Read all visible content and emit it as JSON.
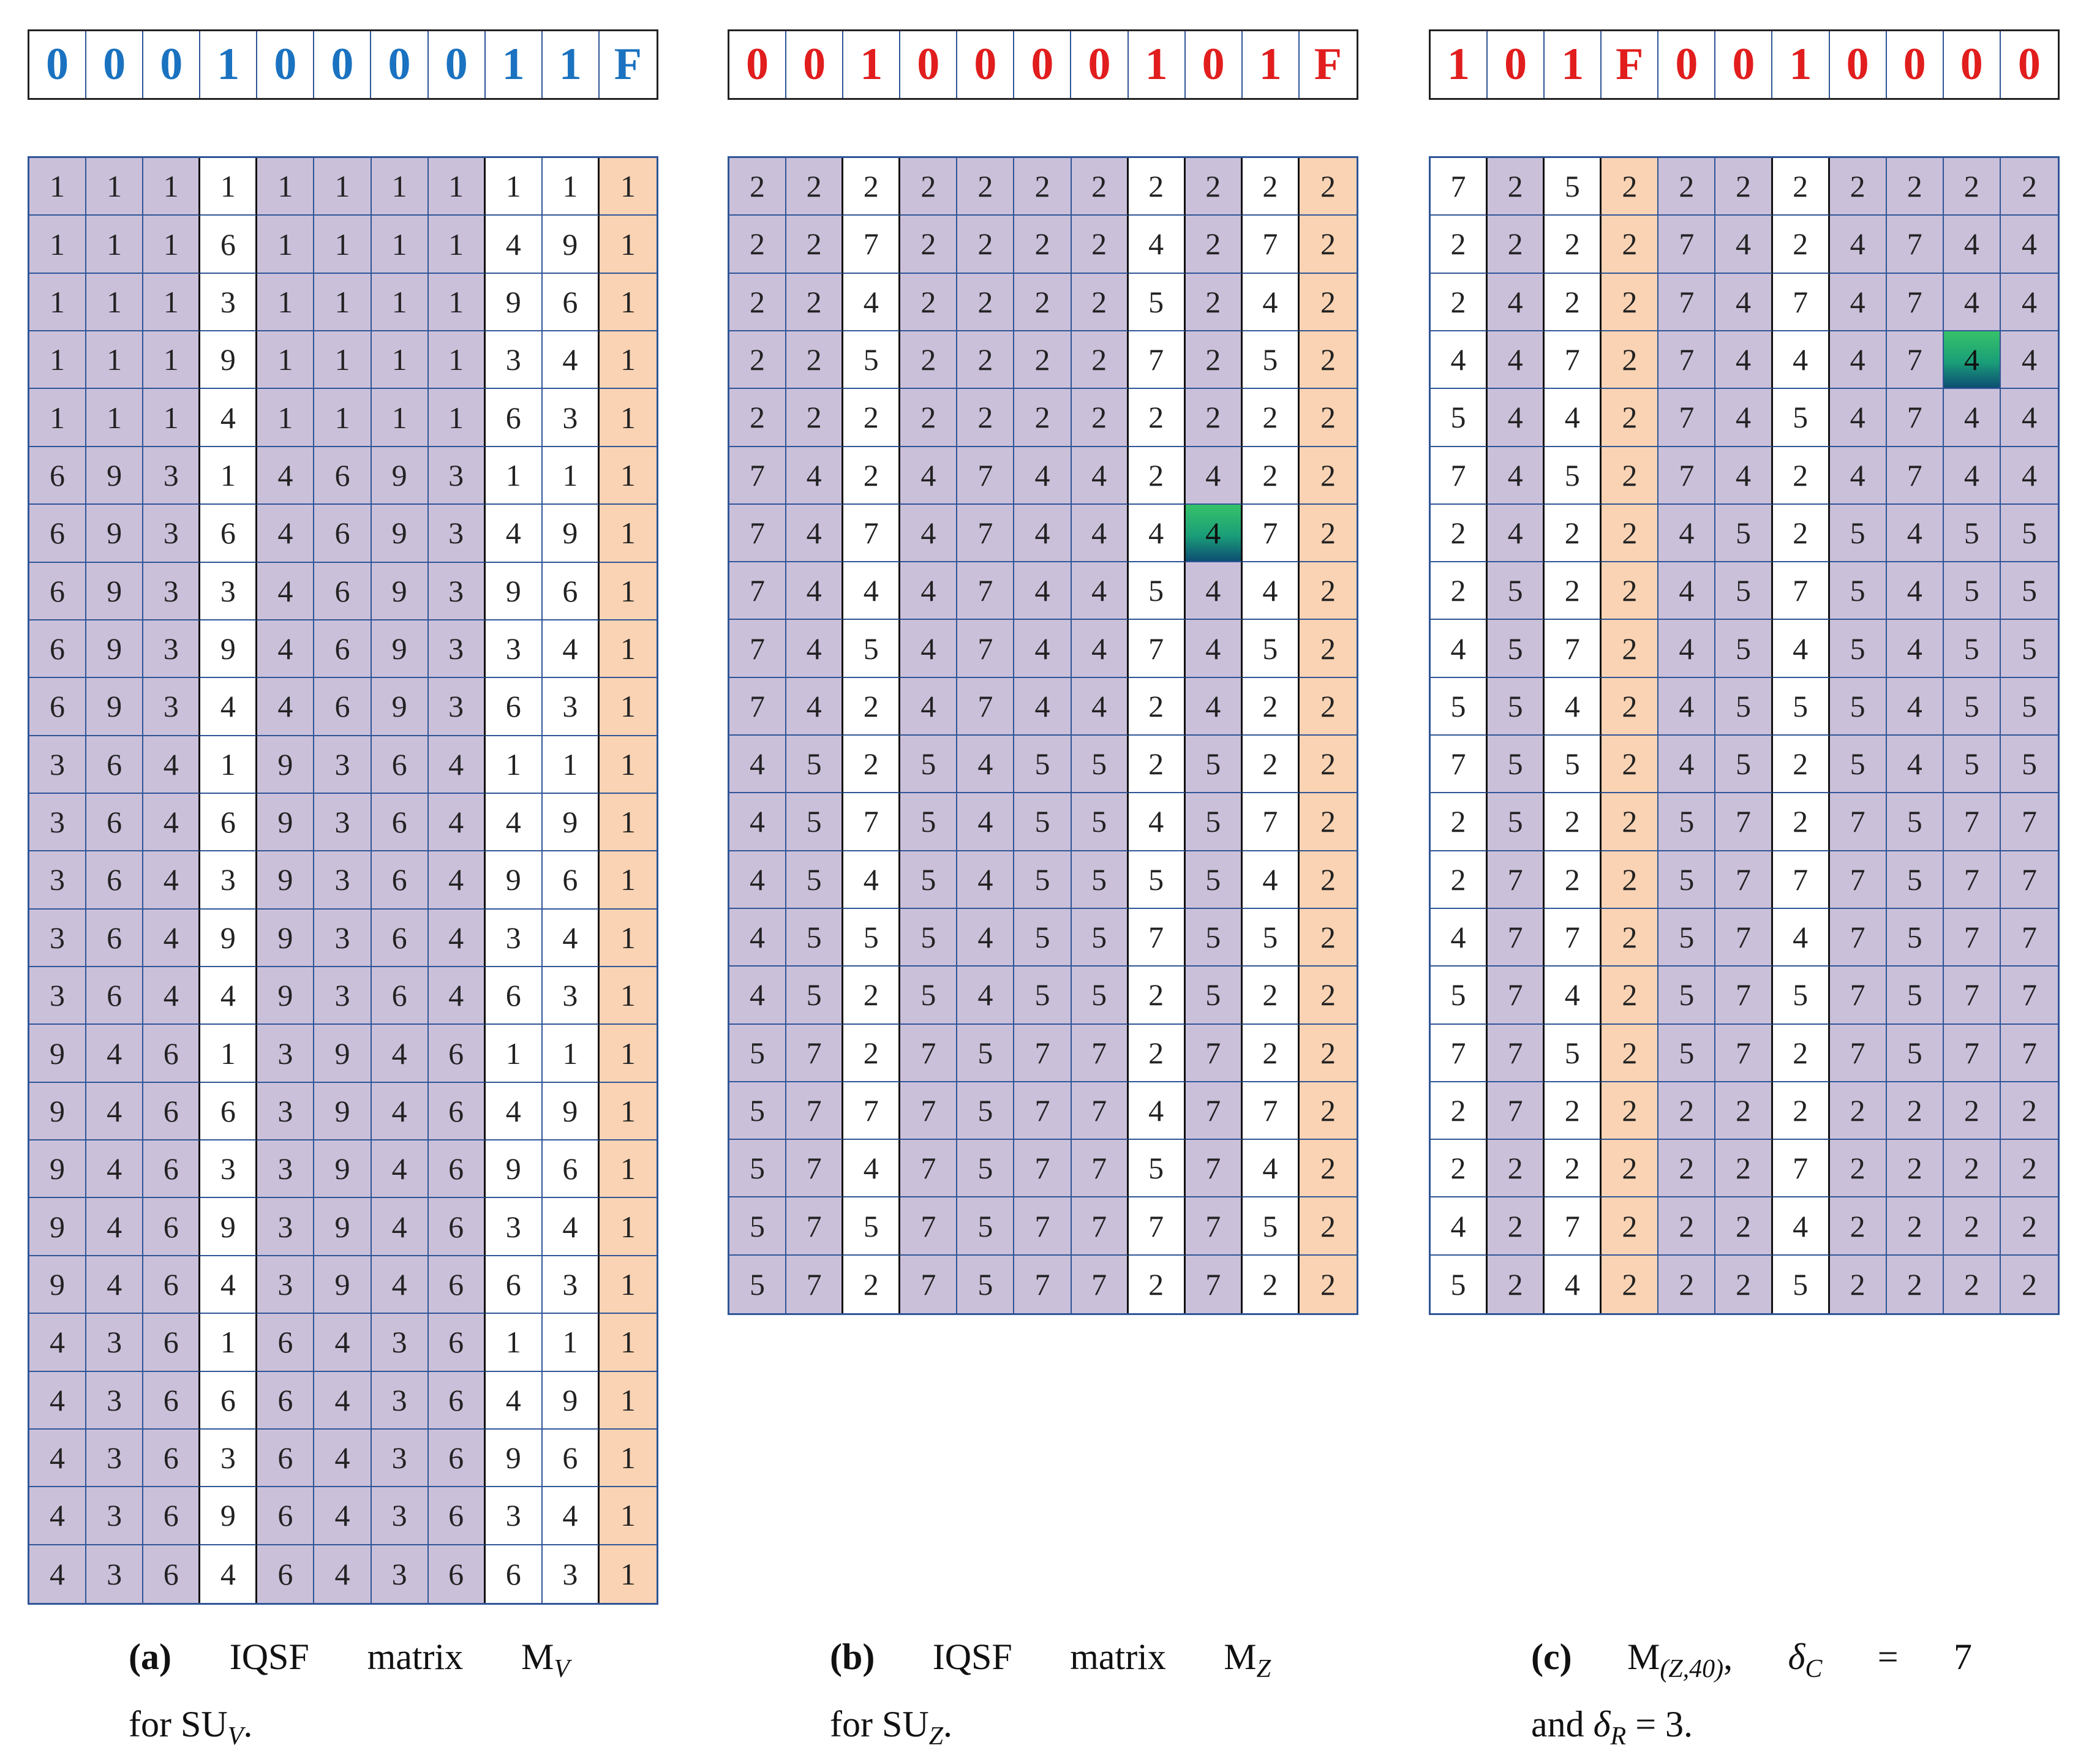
{
  "panels": [
    {
      "id": "a",
      "header": {
        "values": [
          "0",
          "0",
          "0",
          "1",
          "0",
          "0",
          "0",
          "0",
          "1",
          "1",
          "F"
        ],
        "color": "blue"
      },
      "matrix": {
        "col_colors": [
          "p",
          "p",
          "p",
          "w",
          "p",
          "p",
          "p",
          "p",
          "w",
          "w",
          "o"
        ],
        "rows": [
          [
            "1",
            "1",
            "1",
            "1",
            "1",
            "1",
            "1",
            "1",
            "1",
            "1",
            "1"
          ],
          [
            "1",
            "1",
            "1",
            "6",
            "1",
            "1",
            "1",
            "1",
            "4",
            "9",
            "1"
          ],
          [
            "1",
            "1",
            "1",
            "3",
            "1",
            "1",
            "1",
            "1",
            "9",
            "6",
            "1"
          ],
          [
            "1",
            "1",
            "1",
            "9",
            "1",
            "1",
            "1",
            "1",
            "3",
            "4",
            "1"
          ],
          [
            "1",
            "1",
            "1",
            "4",
            "1",
            "1",
            "1",
            "1",
            "6",
            "3",
            "1"
          ],
          [
            "6",
            "9",
            "3",
            "1",
            "4",
            "6",
            "9",
            "3",
            "1",
            "1",
            "1"
          ],
          [
            "6",
            "9",
            "3",
            "6",
            "4",
            "6",
            "9",
            "3",
            "4",
            "9",
            "1"
          ],
          [
            "6",
            "9",
            "3",
            "3",
            "4",
            "6",
            "9",
            "3",
            "9",
            "6",
            "1"
          ],
          [
            "6",
            "9",
            "3",
            "9",
            "4",
            "6",
            "9",
            "3",
            "3",
            "4",
            "1"
          ],
          [
            "6",
            "9",
            "3",
            "4",
            "4",
            "6",
            "9",
            "3",
            "6",
            "3",
            "1"
          ],
          [
            "3",
            "6",
            "4",
            "1",
            "9",
            "3",
            "6",
            "4",
            "1",
            "1",
            "1"
          ],
          [
            "3",
            "6",
            "4",
            "6",
            "9",
            "3",
            "6",
            "4",
            "4",
            "9",
            "1"
          ],
          [
            "3",
            "6",
            "4",
            "3",
            "9",
            "3",
            "6",
            "4",
            "9",
            "6",
            "1"
          ],
          [
            "3",
            "6",
            "4",
            "9",
            "9",
            "3",
            "6",
            "4",
            "3",
            "4",
            "1"
          ],
          [
            "3",
            "6",
            "4",
            "4",
            "9",
            "3",
            "6",
            "4",
            "6",
            "3",
            "1"
          ],
          [
            "9",
            "4",
            "6",
            "1",
            "3",
            "9",
            "4",
            "6",
            "1",
            "1",
            "1"
          ],
          [
            "9",
            "4",
            "6",
            "6",
            "3",
            "9",
            "4",
            "6",
            "4",
            "9",
            "1"
          ],
          [
            "9",
            "4",
            "6",
            "3",
            "3",
            "9",
            "4",
            "6",
            "9",
            "6",
            "1"
          ],
          [
            "9",
            "4",
            "6",
            "9",
            "3",
            "9",
            "4",
            "6",
            "3",
            "4",
            "1"
          ],
          [
            "9",
            "4",
            "6",
            "4",
            "3",
            "9",
            "4",
            "6",
            "6",
            "3",
            "1"
          ],
          [
            "4",
            "3",
            "6",
            "1",
            "6",
            "4",
            "3",
            "6",
            "1",
            "1",
            "1"
          ],
          [
            "4",
            "3",
            "6",
            "6",
            "6",
            "4",
            "3",
            "6",
            "4",
            "9",
            "1"
          ],
          [
            "4",
            "3",
            "6",
            "3",
            "6",
            "4",
            "3",
            "6",
            "9",
            "6",
            "1"
          ],
          [
            "4",
            "3",
            "6",
            "9",
            "6",
            "4",
            "3",
            "6",
            "3",
            "4",
            "1"
          ],
          [
            "4",
            "3",
            "6",
            "4",
            "6",
            "4",
            "3",
            "6",
            "6",
            "3",
            "1"
          ]
        ],
        "highlight": null
      },
      "caption": {
        "tag": "(a)",
        "w1": "IQSF",
        "w2": "matrix",
        "sym": "M",
        "sub": "V",
        "line2a": "for SU",
        "line2sub": "V",
        "line2b": "."
      }
    },
    {
      "id": "b",
      "header": {
        "values": [
          "0",
          "0",
          "1",
          "0",
          "0",
          "0",
          "0",
          "1",
          "0",
          "1",
          "F"
        ],
        "color": "red"
      },
      "matrix": {
        "col_colors": [
          "p",
          "p",
          "w",
          "p",
          "p",
          "p",
          "p",
          "w",
          "p",
          "w",
          "o"
        ],
        "rows": [
          [
            "2",
            "2",
            "2",
            "2",
            "2",
            "2",
            "2",
            "2",
            "2",
            "2",
            "2"
          ],
          [
            "2",
            "2",
            "7",
            "2",
            "2",
            "2",
            "2",
            "4",
            "2",
            "7",
            "2"
          ],
          [
            "2",
            "2",
            "4",
            "2",
            "2",
            "2",
            "2",
            "5",
            "2",
            "4",
            "2"
          ],
          [
            "2",
            "2",
            "5",
            "2",
            "2",
            "2",
            "2",
            "7",
            "2",
            "5",
            "2"
          ],
          [
            "2",
            "2",
            "2",
            "2",
            "2",
            "2",
            "2",
            "2",
            "2",
            "2",
            "2"
          ],
          [
            "7",
            "4",
            "2",
            "4",
            "7",
            "4",
            "4",
            "2",
            "4",
            "2",
            "2"
          ],
          [
            "7",
            "4",
            "7",
            "4",
            "7",
            "4",
            "4",
            "4",
            "4",
            "7",
            "2"
          ],
          [
            "7",
            "4",
            "4",
            "4",
            "7",
            "4",
            "4",
            "5",
            "4",
            "4",
            "2"
          ],
          [
            "7",
            "4",
            "5",
            "4",
            "7",
            "4",
            "4",
            "7",
            "4",
            "5",
            "2"
          ],
          [
            "7",
            "4",
            "2",
            "4",
            "7",
            "4",
            "4",
            "2",
            "4",
            "2",
            "2"
          ],
          [
            "4",
            "5",
            "2",
            "5",
            "4",
            "5",
            "5",
            "2",
            "5",
            "2",
            "2"
          ],
          [
            "4",
            "5",
            "7",
            "5",
            "4",
            "5",
            "5",
            "4",
            "5",
            "7",
            "2"
          ],
          [
            "4",
            "5",
            "4",
            "5",
            "4",
            "5",
            "5",
            "5",
            "5",
            "4",
            "2"
          ],
          [
            "4",
            "5",
            "5",
            "5",
            "4",
            "5",
            "5",
            "7",
            "5",
            "5",
            "2"
          ],
          [
            "4",
            "5",
            "2",
            "5",
            "4",
            "5",
            "5",
            "2",
            "5",
            "2",
            "2"
          ],
          [
            "5",
            "7",
            "2",
            "7",
            "5",
            "7",
            "7",
            "2",
            "7",
            "2",
            "2"
          ],
          [
            "5",
            "7",
            "7",
            "7",
            "5",
            "7",
            "7",
            "4",
            "7",
            "7",
            "2"
          ],
          [
            "5",
            "7",
            "4",
            "7",
            "5",
            "7",
            "7",
            "5",
            "7",
            "4",
            "2"
          ],
          [
            "5",
            "7",
            "5",
            "7",
            "5",
            "7",
            "7",
            "7",
            "7",
            "5",
            "2"
          ],
          [
            "5",
            "7",
            "2",
            "7",
            "5",
            "7",
            "7",
            "2",
            "7",
            "2",
            "2"
          ]
        ],
        "highlight": [
          6,
          8
        ]
      },
      "caption": {
        "tag": "(b)",
        "w1": "IQSF",
        "w2": "matrix",
        "sym": "M",
        "sub": "Z",
        "line2a": "for SU",
        "line2sub": "Z",
        "line2b": "."
      }
    },
    {
      "id": "c",
      "header": {
        "values": [
          "1",
          "0",
          "1",
          "F",
          "0",
          "0",
          "1",
          "0",
          "0",
          "0",
          "0"
        ],
        "color": "red"
      },
      "matrix": {
        "col_colors": [
          "w",
          "p",
          "w",
          "o",
          "p",
          "p",
          "w",
          "p",
          "p",
          "p",
          "p"
        ],
        "rows": [
          [
            "7",
            "2",
            "5",
            "2",
            "2",
            "2",
            "2",
            "2",
            "2",
            "2",
            "2"
          ],
          [
            "2",
            "2",
            "2",
            "2",
            "7",
            "4",
            "2",
            "4",
            "7",
            "4",
            "4"
          ],
          [
            "2",
            "4",
            "2",
            "2",
            "7",
            "4",
            "7",
            "4",
            "7",
            "4",
            "4"
          ],
          [
            "4",
            "4",
            "7",
            "2",
            "7",
            "4",
            "4",
            "4",
            "7",
            "4",
            "4"
          ],
          [
            "5",
            "4",
            "4",
            "2",
            "7",
            "4",
            "5",
            "4",
            "7",
            "4",
            "4"
          ],
          [
            "7",
            "4",
            "5",
            "2",
            "7",
            "4",
            "2",
            "4",
            "7",
            "4",
            "4"
          ],
          [
            "2",
            "4",
            "2",
            "2",
            "4",
            "5",
            "2",
            "5",
            "4",
            "5",
            "5"
          ],
          [
            "2",
            "5",
            "2",
            "2",
            "4",
            "5",
            "7",
            "5",
            "4",
            "5",
            "5"
          ],
          [
            "4",
            "5",
            "7",
            "2",
            "4",
            "5",
            "4",
            "5",
            "4",
            "5",
            "5"
          ],
          [
            "5",
            "5",
            "4",
            "2",
            "4",
            "5",
            "5",
            "5",
            "4",
            "5",
            "5"
          ],
          [
            "7",
            "5",
            "5",
            "2",
            "4",
            "5",
            "2",
            "5",
            "4",
            "5",
            "5"
          ],
          [
            "2",
            "5",
            "2",
            "2",
            "5",
            "7",
            "2",
            "7",
            "5",
            "7",
            "7"
          ],
          [
            "2",
            "7",
            "2",
            "2",
            "5",
            "7",
            "7",
            "7",
            "5",
            "7",
            "7"
          ],
          [
            "4",
            "7",
            "7",
            "2",
            "5",
            "7",
            "4",
            "7",
            "5",
            "7",
            "7"
          ],
          [
            "5",
            "7",
            "4",
            "2",
            "5",
            "7",
            "5",
            "7",
            "5",
            "7",
            "7"
          ],
          [
            "7",
            "7",
            "5",
            "2",
            "5",
            "7",
            "2",
            "7",
            "5",
            "7",
            "7"
          ],
          [
            "2",
            "7",
            "2",
            "2",
            "2",
            "2",
            "2",
            "2",
            "2",
            "2",
            "2"
          ],
          [
            "2",
            "2",
            "2",
            "2",
            "2",
            "2",
            "7",
            "2",
            "2",
            "2",
            "2"
          ],
          [
            "4",
            "2",
            "7",
            "2",
            "2",
            "2",
            "4",
            "2",
            "2",
            "2",
            "2"
          ],
          [
            "5",
            "2",
            "4",
            "2",
            "2",
            "2",
            "5",
            "2",
            "2",
            "2",
            "2"
          ]
        ],
        "highlight": [
          3,
          9
        ]
      },
      "caption": {
        "tag": "(c)",
        "sym": "M",
        "sub": "(Z,40)",
        "deltaC": "δ",
        "deltaCsub": "C",
        "eq": "=",
        "deltaCval": "7",
        "line2a": "and ",
        "deltaR": "δ",
        "deltaRsub": "R",
        "line2b": " = 3."
      }
    }
  ]
}
